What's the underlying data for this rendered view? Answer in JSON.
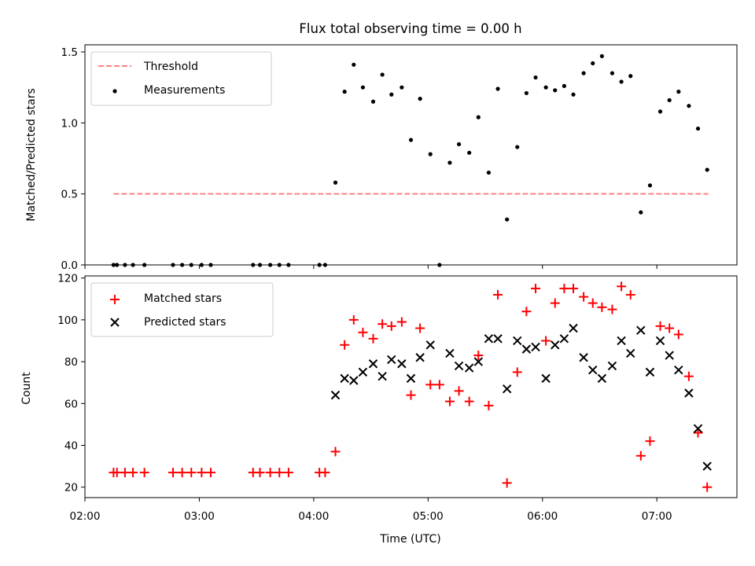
{
  "chart_data": [
    {
      "type": "scatter",
      "title": "Flux total observing time = 0.00 h",
      "ylabel": "Matched/Predicted stars",
      "xlabel": "",
      "x_unit": "hours (UTC)",
      "xlim": [
        2.0,
        7.7
      ],
      "ylim": [
        0.0,
        1.55
      ],
      "yticks": [
        0.0,
        0.5,
        1.0,
        1.5
      ],
      "ytick_labels": [
        "0.0",
        "0.5",
        "1.0",
        "1.5"
      ],
      "xticks": [
        2,
        3,
        4,
        5,
        6,
        7
      ],
      "grid": false,
      "legend_position": "upper left",
      "legend": [
        "Threshold",
        "Measurements"
      ],
      "threshold": {
        "name": "Threshold",
        "value": 0.5,
        "x_range": [
          2.25,
          7.45
        ],
        "style": "dashed",
        "color": "#ff8080"
      },
      "series": [
        {
          "name": "Measurements",
          "marker": "dot",
          "color": "#000000",
          "x": [
            2.25,
            2.28,
            2.35,
            2.42,
            2.52,
            2.77,
            2.85,
            2.93,
            3.02,
            3.1,
            3.47,
            3.53,
            3.62,
            3.7,
            3.78,
            4.05,
            4.1,
            4.19,
            4.27,
            4.35,
            4.43,
            4.52,
            4.6,
            4.68,
            4.77,
            4.85,
            4.93,
            5.02,
            5.1,
            5.19,
            5.27,
            5.36,
            5.44,
            5.53,
            5.61,
            5.69,
            5.78,
            5.86,
            5.94,
            6.03,
            6.11,
            6.19,
            6.27,
            6.36,
            6.44,
            6.52,
            6.61,
            6.69,
            6.77,
            6.86,
            6.94,
            7.03,
            7.11,
            7.19,
            7.28,
            7.36,
            7.44
          ],
          "y": [
            0.0,
            0.0,
            0.0,
            0.0,
            0.0,
            0.0,
            0.0,
            0.0,
            0.0,
            0.0,
            0.0,
            0.0,
            0.0,
            0.0,
            0.0,
            0.0,
            0.0,
            0.58,
            1.22,
            1.41,
            1.25,
            1.15,
            1.34,
            1.2,
            1.25,
            0.88,
            1.17,
            0.78,
            0.0,
            0.72,
            0.85,
            0.79,
            1.04,
            0.65,
            1.24,
            0.32,
            0.83,
            1.21,
            1.32,
            1.25,
            1.23,
            1.26,
            1.2,
            1.35,
            1.42,
            1.47,
            1.35,
            1.29,
            1.33,
            0.37,
            0.56,
            1.08,
            1.16,
            1.22,
            1.12,
            0.96,
            0.67
          ]
        }
      ]
    },
    {
      "type": "scatter",
      "title": "",
      "ylabel": "Count",
      "xlabel": "Time (UTC)",
      "x_unit": "hours (UTC)",
      "xlim": [
        2.0,
        7.7
      ],
      "ylim": [
        15.0,
        121.0
      ],
      "yticks": [
        20,
        40,
        60,
        80,
        100,
        120
      ],
      "ytick_labels": [
        "20",
        "40",
        "60",
        "80",
        "100",
        "120"
      ],
      "xticks": [
        2,
        3,
        4,
        5,
        6,
        7
      ],
      "xtick_labels": [
        "02:00",
        "03:00",
        "04:00",
        "05:00",
        "06:00",
        "07:00"
      ],
      "grid": false,
      "legend_position": "upper left",
      "legend": [
        "Matched stars",
        "Predicted stars"
      ],
      "series": [
        {
          "name": "Matched stars",
          "marker": "plus",
          "color": "#ff0000",
          "x": [
            2.25,
            2.28,
            2.35,
            2.42,
            2.52,
            2.77,
            2.85,
            2.93,
            3.02,
            3.1,
            3.47,
            3.53,
            3.62,
            3.7,
            3.78,
            4.05,
            4.1,
            4.19,
            4.27,
            4.35,
            4.43,
            4.52,
            4.6,
            4.68,
            4.77,
            4.85,
            4.93,
            5.02,
            5.1,
            5.19,
            5.27,
            5.36,
            5.44,
            5.53,
            5.61,
            5.69,
            5.78,
            5.86,
            5.94,
            6.03,
            6.11,
            6.19,
            6.27,
            6.36,
            6.44,
            6.52,
            6.61,
            6.69,
            6.77,
            6.86,
            6.94,
            7.03,
            7.11,
            7.19,
            7.28,
            7.36,
            7.44
          ],
          "y": [
            27,
            27,
            27,
            27,
            27,
            27,
            27,
            27,
            27,
            27,
            27,
            27,
            27,
            27,
            27,
            27,
            27,
            37,
            88,
            100,
            94,
            91,
            98,
            97,
            99,
            64,
            96,
            69,
            69,
            61,
            66,
            61,
            83,
            59,
            112,
            22,
            75,
            104,
            115,
            90,
            108,
            115,
            115,
            111,
            108,
            106,
            105,
            116,
            112,
            35,
            42,
            97,
            96,
            93,
            73,
            46,
            20
          ]
        },
        {
          "name": "Predicted stars",
          "marker": "x",
          "color": "#000000",
          "x": [
            4.19,
            4.27,
            4.35,
            4.43,
            4.52,
            4.6,
            4.68,
            4.77,
            4.85,
            4.93,
            5.02,
            5.19,
            5.27,
            5.36,
            5.44,
            5.53,
            5.61,
            5.69,
            5.78,
            5.86,
            5.94,
            6.03,
            6.11,
            6.19,
            6.27,
            6.36,
            6.44,
            6.52,
            6.61,
            6.69,
            6.77,
            6.86,
            6.94,
            7.03,
            7.11,
            7.19,
            7.28,
            7.36,
            7.44
          ],
          "y": [
            64,
            72,
            71,
            75,
            79,
            73,
            81,
            79,
            72,
            82,
            88,
            84,
            78,
            77,
            80,
            91,
            91,
            67,
            90,
            86,
            87,
            72,
            88,
            91,
            96,
            82,
            76,
            72,
            78,
            90,
            84,
            95,
            75,
            90,
            83,
            76,
            65,
            48,
            30
          ]
        }
      ]
    }
  ]
}
